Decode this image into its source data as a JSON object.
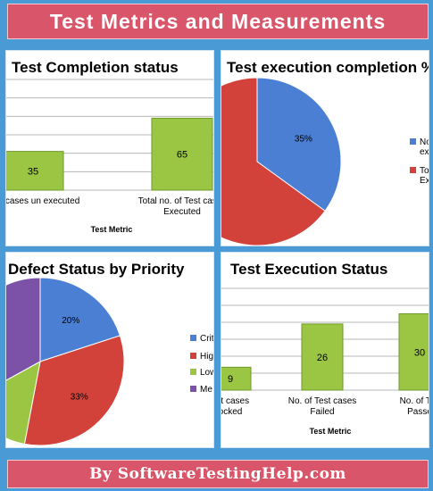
{
  "header": {
    "title": "Test Metrics and Measurements"
  },
  "footer": {
    "credit": "By SoftwareTestingHelp.com"
  },
  "colors": {
    "bar": "#9ac644",
    "blue": "#4a7fd4",
    "red": "#d2423b",
    "green": "#9ac644",
    "purple": "#7b52a8"
  },
  "chart_data": [
    {
      "type": "bar",
      "title": "Test Completion status",
      "xlabel": "Test Metric",
      "categories": [
        "Test cases un executed",
        "Total no. of Test cases Executed"
      ],
      "category_lines": [
        [
          "Test cases un executed"
        ],
        [
          "Total no. of Test cases",
          "Executed"
        ]
      ],
      "values": [
        35,
        65
      ],
      "ylim": [
        0,
        100
      ],
      "grid": true
    },
    {
      "type": "pie",
      "title": "Test execution completion %",
      "labels": [
        "No. of test cases not executed",
        "Total no. of test cases executed"
      ],
      "legend_lines": [
        [
          "No",
          "ex"
        ],
        [
          "To",
          "Ex"
        ]
      ],
      "values": [
        35,
        65
      ],
      "data_labels": [
        "35%",
        ""
      ],
      "legend": "right"
    },
    {
      "type": "pie",
      "title": "Defect Status by Priority",
      "labels": [
        "Critical",
        "High",
        "Low",
        "Medium"
      ],
      "legend_lines": [
        "Crit",
        "Hig",
        "Low",
        "Me"
      ],
      "values": [
        20,
        33,
        14,
        33
      ],
      "data_labels": [
        "20%",
        "33%",
        "",
        "%"
      ],
      "legend": "right"
    },
    {
      "type": "bar",
      "title": "Test Execution Status",
      "xlabel": "Test Metric",
      "categories": [
        "No. of Test cases Blocked",
        "No. of Test cases Failed",
        "No. of Test cases Passed"
      ],
      "category_lines": [
        [
          "est cases",
          "ocked"
        ],
        [
          "No. of Test cases",
          "Failed"
        ],
        [
          "No. of Tes",
          "Passe"
        ]
      ],
      "values": [
        9,
        26,
        30
      ],
      "ylim": [
        0,
        40
      ],
      "grid": true
    }
  ]
}
